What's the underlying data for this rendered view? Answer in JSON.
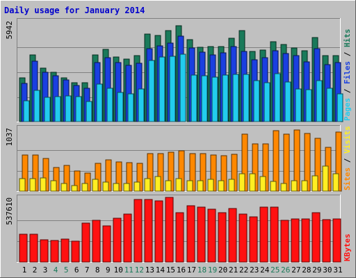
{
  "title": "Daily usage for January 2014",
  "colors": {
    "background": "#c0c0c0",
    "title": "#0000cc",
    "hits": "#1a7a5a",
    "files": "#1a3fe0",
    "pages": "#22ccee",
    "visits": "#ff8800",
    "sites": "#ffee22",
    "kbytes": "#ff1111",
    "weekend_label": "#1a7a5a"
  },
  "chart_data": [
    {
      "type": "bar",
      "title": "Daily usage for January 2014",
      "ylabel_parts": [
        "Pages",
        "Files",
        "Hits"
      ],
      "ymax_label": "5942",
      "ylim": [
        0,
        5942
      ],
      "categories": [
        "1",
        "2",
        "3",
        "4",
        "5",
        "6",
        "7",
        "8",
        "9",
        "10",
        "11",
        "12",
        "13",
        "14",
        "15",
        "16",
        "17",
        "18",
        "19",
        "20",
        "21",
        "22",
        "23",
        "24",
        "25",
        "26",
        "27",
        "28",
        "29",
        "30",
        "31"
      ],
      "series": [
        {
          "name": "Hits",
          "values": [
            2580,
            3920,
            3170,
            2930,
            2570,
            2310,
            2290,
            3920,
            4270,
            3820,
            3690,
            3880,
            5180,
            5080,
            5380,
            5660,
            4830,
            4370,
            4420,
            4430,
            4930,
            5350,
            4130,
            4230,
            4730,
            4550,
            4340,
            4160,
            4950,
            3890,
            3900
          ]
        },
        {
          "name": "Files",
          "values": [
            2250,
            3580,
            2930,
            2710,
            2450,
            2150,
            1970,
            3490,
            3770,
            3490,
            3320,
            3450,
            4300,
            4470,
            4630,
            5020,
            4330,
            4090,
            3920,
            4050,
            4410,
            4130,
            3630,
            3750,
            4200,
            4030,
            3880,
            3530,
            4300,
            3370,
            3500
          ]
        },
        {
          "name": "Pages",
          "values": [
            1220,
            1830,
            1450,
            1480,
            1520,
            1480,
            1200,
            2230,
            1950,
            1710,
            1650,
            1920,
            3590,
            3820,
            3860,
            3980,
            2730,
            2720,
            2610,
            2760,
            2770,
            2790,
            2430,
            2300,
            2840,
            2350,
            1920,
            1880,
            2400,
            1970,
            1650
          ]
        }
      ]
    },
    {
      "type": "bar",
      "ylabel_parts": [
        "Sites",
        "Visits"
      ],
      "ymax_label": "1037",
      "ylim": [
        0,
        1037
      ],
      "categories": [
        "1",
        "2",
        "3",
        "4",
        "5",
        "6",
        "7",
        "8",
        "9",
        "10",
        "11",
        "12",
        "13",
        "14",
        "15",
        "16",
        "17",
        "18",
        "19",
        "20",
        "21",
        "22",
        "23",
        "24",
        "25",
        "26",
        "27",
        "28",
        "29",
        "30",
        "31"
      ],
      "series": [
        {
          "name": "Visits",
          "values": [
            590,
            590,
            530,
            390,
            420,
            330,
            300,
            460,
            510,
            480,
            470,
            460,
            610,
            620,
            640,
            660,
            620,
            610,
            590,
            580,
            600,
            930,
            780,
            770,
            990,
            930,
            1000,
            950,
            870,
            720,
            970
          ]
        },
        {
          "name": "Sites",
          "values": [
            210,
            200,
            220,
            170,
            120,
            90,
            130,
            190,
            150,
            130,
            130,
            150,
            200,
            240,
            170,
            210,
            170,
            170,
            190,
            170,
            190,
            290,
            280,
            240,
            160,
            120,
            170,
            170,
            250,
            410,
            280
          ]
        }
      ]
    },
    {
      "type": "bar",
      "ylabel_parts": [
        "KBytes"
      ],
      "ymax_label": "537610",
      "ylim": [
        0,
        537610
      ],
      "categories": [
        "1",
        "2",
        "3",
        "4",
        "5",
        "6",
        "7",
        "8",
        "9",
        "10",
        "11",
        "12",
        "13",
        "14",
        "15",
        "16",
        "17",
        "18",
        "19",
        "20",
        "21",
        "22",
        "23",
        "24",
        "25",
        "26",
        "27",
        "28",
        "29",
        "30",
        "31"
      ],
      "series": [
        {
          "name": "KBytes",
          "values": [
            233000,
            233000,
            187000,
            182000,
            191000,
            174000,
            321000,
            345000,
            300000,
            363000,
            396000,
            522000,
            522000,
            507000,
            537000,
            412000,
            466000,
            454000,
            440000,
            410000,
            445000,
            400000,
            374000,
            457000,
            457000,
            345000,
            360000,
            360000,
            408000,
            353000,
            360000
          ]
        }
      ]
    }
  ],
  "weekend_days": [
    "4",
    "5",
    "11",
    "12",
    "18",
    "19",
    "25",
    "26"
  ]
}
